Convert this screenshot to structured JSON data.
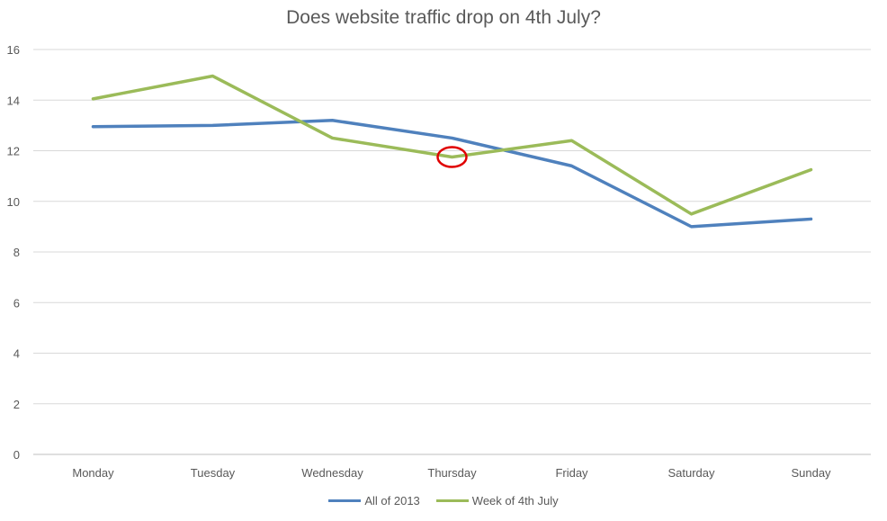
{
  "chart_data": {
    "type": "line",
    "title": "Does website traffic drop on 4th July?",
    "xlabel": "",
    "ylabel": "",
    "categories": [
      "Monday",
      "Tuesday",
      "Wednesday",
      "Thursday",
      "Friday",
      "Saturday",
      "Sunday"
    ],
    "ylim": [
      0,
      16
    ],
    "yticks": [
      0,
      2,
      4,
      6,
      8,
      10,
      12,
      14,
      16
    ],
    "grid": true,
    "legend_position": "bottom",
    "series": [
      {
        "name": "All of 2013",
        "color": "#4f81bd",
        "values": [
          12.95,
          13.0,
          13.2,
          12.5,
          11.4,
          9.0,
          9.3
        ]
      },
      {
        "name": "Week of 4th July",
        "color": "#9bbb59",
        "values": [
          14.05,
          14.95,
          12.5,
          11.75,
          12.4,
          9.5,
          11.25
        ]
      }
    ],
    "annotations": [
      {
        "type": "circle-highlight",
        "color": "#e00000",
        "category": "Thursday",
        "series": "Week of 4th July"
      }
    ]
  }
}
